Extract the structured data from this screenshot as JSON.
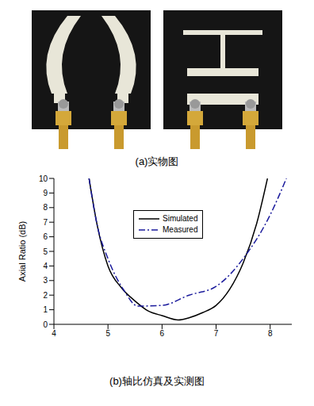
{
  "photo_caption": "(a)实物图",
  "chart_data": {
    "type": "line",
    "title": "(b)轴比仿真及实测图",
    "y_label": "Axial Ratio (dB)",
    "xlim": [
      4,
      8.4
    ],
    "xticks": [
      4,
      5,
      6,
      7,
      8
    ],
    "ylim": [
      0,
      10
    ],
    "yticks": [
      0,
      1,
      2,
      3,
      4,
      5,
      6,
      7,
      8,
      9,
      10
    ],
    "legend": "upper center",
    "series": [
      {
        "name": "Simulated",
        "color": "#000000",
        "line_style": "solid",
        "x": [
          4.65,
          4.8,
          5.0,
          5.25,
          5.5,
          5.75,
          6.0,
          6.3,
          6.5,
          6.75,
          7.0,
          7.25,
          7.5,
          7.75,
          7.95
        ],
        "values": [
          10,
          6.8,
          4.0,
          2.5,
          1.6,
          0.9,
          0.6,
          0.3,
          0.45,
          0.8,
          1.3,
          2.4,
          4.2,
          6.9,
          10
        ]
      },
      {
        "name": "Measured",
        "color": "#1a1a9c",
        "line_style": "dashdot",
        "x": [
          4.65,
          4.8,
          5.0,
          5.3,
          5.55,
          6.0,
          6.5,
          7.0,
          7.5,
          8.0,
          8.3
        ],
        "values": [
          10,
          6.8,
          4.5,
          2.3,
          1.25,
          1.3,
          2.0,
          2.6,
          4.5,
          7.5,
          10
        ]
      }
    ]
  }
}
